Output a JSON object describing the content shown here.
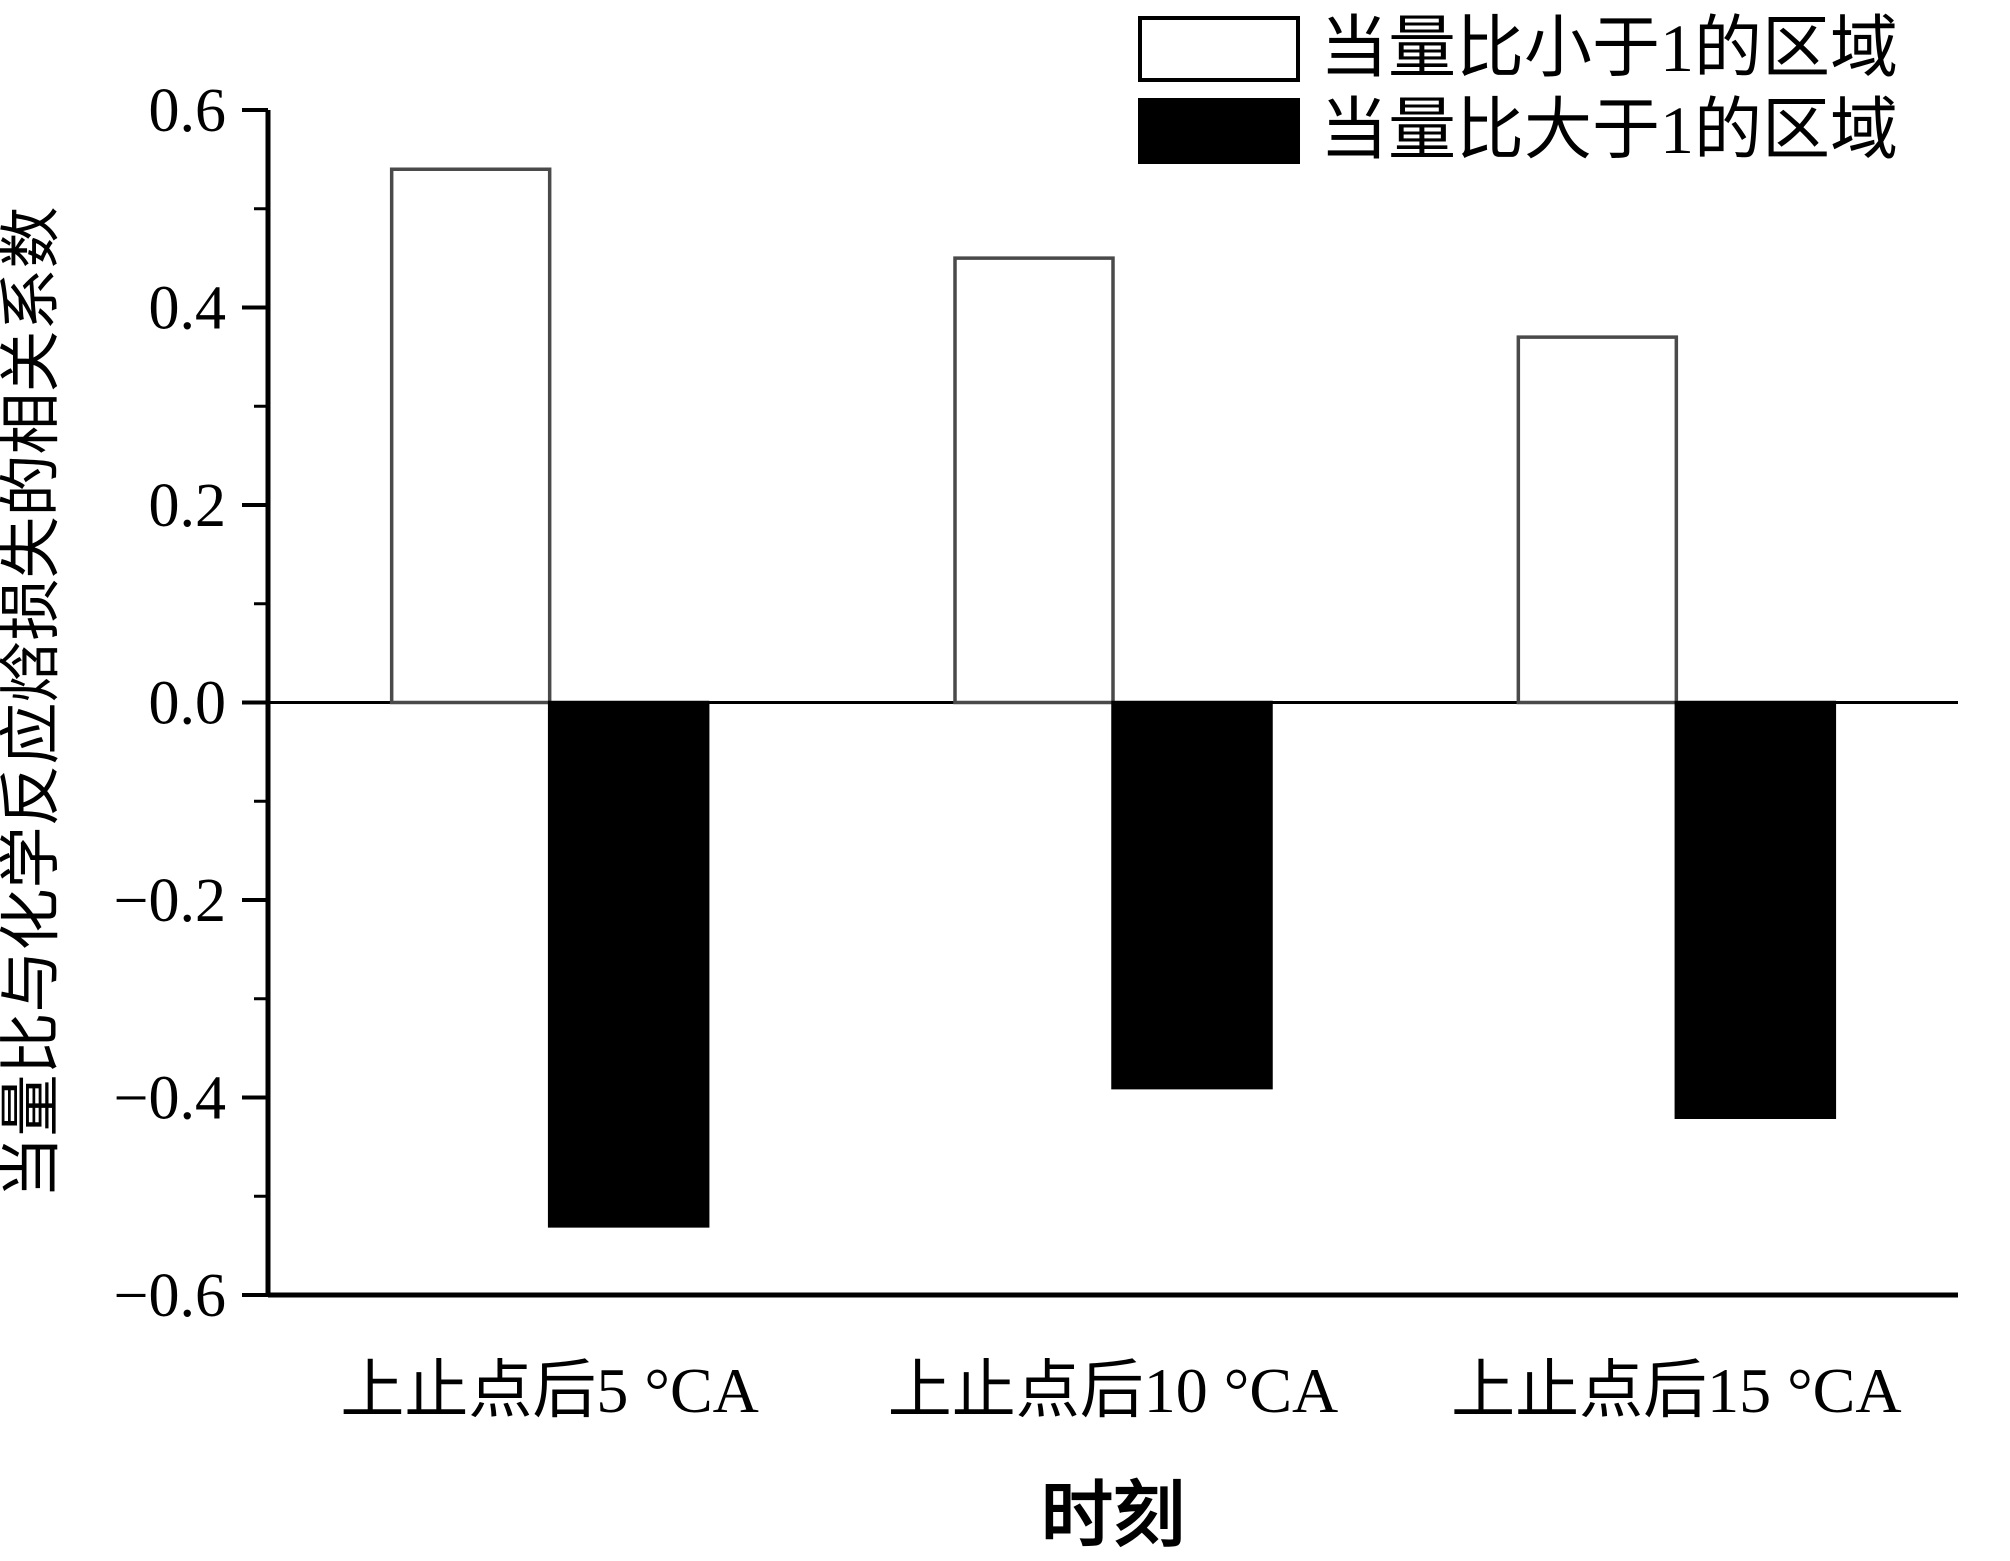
{
  "chart_data": {
    "type": "bar",
    "title": "",
    "xlabel": "时刻",
    "ylabel": "当量比与化学反应焓损失的相关系数",
    "categories": [
      "上止点后5 °CA",
      "上止点后10 °CA",
      "上止点后15 °CA"
    ],
    "series": [
      {
        "name": "当量比小于1的区域",
        "values": [
          0.54,
          0.45,
          0.37
        ],
        "fill": "#ffffff",
        "stroke": "#4a4a4a"
      },
      {
        "name": "当量比大于1的区域",
        "values": [
          -0.53,
          -0.39,
          -0.42
        ],
        "fill": "#000000",
        "stroke": "#000000"
      }
    ],
    "ylim": [
      -0.6,
      0.6
    ],
    "yticks": [
      {
        "value": 0.6,
        "label": "0.6"
      },
      {
        "value": 0.4,
        "label": "0.4"
      },
      {
        "value": 0.2,
        "label": "0.2"
      },
      {
        "value": 0.0,
        "label": "0.0"
      },
      {
        "value": -0.2,
        "label": "−0.2"
      },
      {
        "value": -0.4,
        "label": "−0.4"
      },
      {
        "value": -0.6,
        "label": "−0.6"
      }
    ],
    "minor_tick_step": 0.1,
    "grid": false,
    "legend_position": "top-right",
    "colors": {
      "axis": "#000000",
      "background": "#ffffff",
      "bar_lt1_fill": "#ffffff",
      "bar_lt1_stroke": "#4a4a4a",
      "bar_gt1_fill": "#000000"
    }
  }
}
